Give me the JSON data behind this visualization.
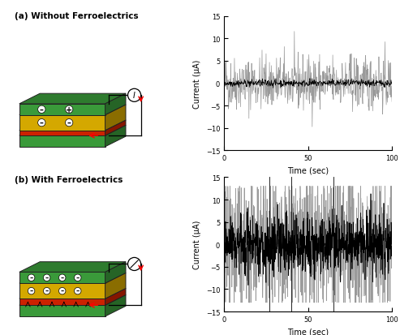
{
  "title_a": "(a) Without Ferroelectrics",
  "title_b": "(b) With Ferroelectrics",
  "xlabel": "Time (sec)",
  "ylabel": "Current (μA)",
  "xlim": [
    0,
    100
  ],
  "ylim": [
    -15,
    15
  ],
  "yticks": [
    -15,
    -10,
    -5,
    0,
    5,
    10,
    15
  ],
  "xticks": [
    0,
    50,
    100
  ],
  "background_color": "#ffffff",
  "green_color": "#3a9a3a",
  "yellow_color": "#d4a800",
  "red_color": "#cc2200",
  "plot_a_gray_amplitude": 3.0,
  "plot_a_black_amplitude": 0.4,
  "plot_b_gray_amplitude": 11.0,
  "plot_b_black_amplitude": 5.0,
  "n_points_a": 500,
  "n_points_b": 1000,
  "seed": 42,
  "gray_color": "#888888",
  "black_color": "#000000",
  "linewidth_plot": 0.5
}
